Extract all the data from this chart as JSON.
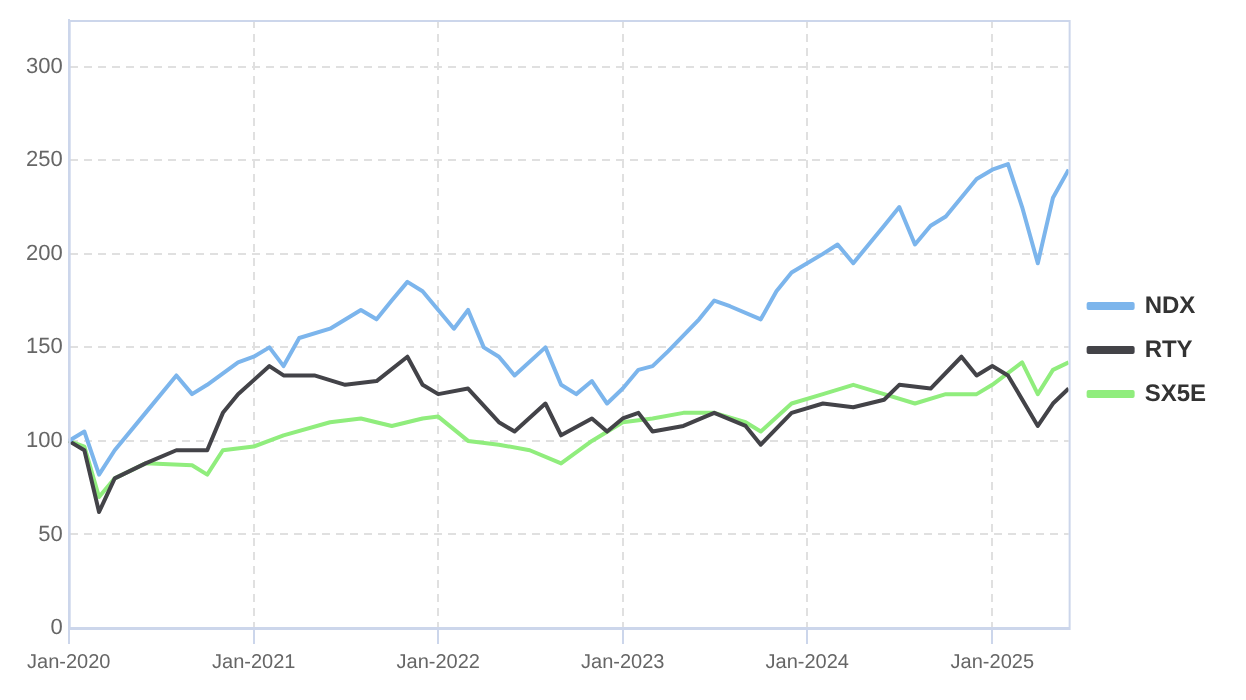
{
  "chart_data": {
    "type": "line",
    "legend": "right",
    "grid": true,
    "line_style": "solid",
    "marker": "none",
    "xlim": [
      "2020-01",
      "2025-06"
    ],
    "xticks": [
      {
        "value": "2020-01",
        "label": "Jan-2020"
      },
      {
        "value": "2021-01",
        "label": "Jan-2021"
      },
      {
        "value": "2022-01",
        "label": "Jan-2022"
      },
      {
        "value": "2023-01",
        "label": "Jan-2023"
      },
      {
        "value": "2024-01",
        "label": "Jan-2024"
      },
      {
        "value": "2025-01",
        "label": "Jan-2025"
      }
    ],
    "ylim": [
      0,
      325
    ],
    "yticks": [
      0,
      50,
      100,
      150,
      200,
      250,
      300
    ],
    "series": [
      {
        "name": "NDX",
        "color": "#7cb5ec",
        "x": [
          "2020-01",
          "2020-02",
          "2020-03",
          "2020-04",
          "2020-06",
          "2020-08",
          "2020-09",
          "2020-10",
          "2020-12",
          "2021-01",
          "2021-02",
          "2021-03",
          "2021-04",
          "2021-06",
          "2021-08",
          "2021-09",
          "2021-10",
          "2021-11",
          "2021-12",
          "2022-01",
          "2022-02",
          "2022-03",
          "2022-04",
          "2022-05",
          "2022-06",
          "2022-08",
          "2022-09",
          "2022-10",
          "2022-11",
          "2022-12",
          "2023-01",
          "2023-02",
          "2023-03",
          "2023-04",
          "2023-06",
          "2023-07",
          "2023-08",
          "2023-10",
          "2023-11",
          "2023-12",
          "2024-02",
          "2024-03",
          "2024-04",
          "2024-06",
          "2024-07",
          "2024-08",
          "2024-09",
          "2024-10",
          "2024-12",
          "2025-01",
          "2025-02",
          "2025-03",
          "2025-04",
          "2025-05",
          "2025-06"
        ],
        "values": [
          100,
          105,
          82,
          95,
          115,
          135,
          125,
          130,
          142,
          145,
          150,
          140,
          155,
          160,
          170,
          165,
          175,
          185,
          180,
          170,
          160,
          170,
          150,
          145,
          135,
          150,
          130,
          125,
          132,
          120,
          128,
          138,
          140,
          148,
          165,
          175,
          172,
          165,
          180,
          190,
          200,
          205,
          195,
          215,
          225,
          205,
          215,
          220,
          240,
          245,
          248,
          225,
          195,
          230,
          245
        ]
      },
      {
        "name": "RTY",
        "color": "#434348",
        "x": [
          "2020-01",
          "2020-02",
          "2020-03",
          "2020-04",
          "2020-06",
          "2020-08",
          "2020-10",
          "2020-11",
          "2020-12",
          "2021-02",
          "2021-03",
          "2021-05",
          "2021-07",
          "2021-09",
          "2021-11",
          "2021-12",
          "2022-01",
          "2022-03",
          "2022-05",
          "2022-06",
          "2022-08",
          "2022-09",
          "2022-11",
          "2022-12",
          "2023-01",
          "2023-02",
          "2023-03",
          "2023-05",
          "2023-07",
          "2023-09",
          "2023-10",
          "2023-12",
          "2024-02",
          "2024-04",
          "2024-06",
          "2024-07",
          "2024-09",
          "2024-11",
          "2024-12",
          "2025-01",
          "2025-02",
          "2025-04",
          "2025-05",
          "2025-06"
        ],
        "values": [
          100,
          95,
          62,
          80,
          88,
          95,
          95,
          115,
          125,
          140,
          135,
          135,
          130,
          132,
          145,
          130,
          125,
          128,
          110,
          105,
          120,
          103,
          112,
          105,
          112,
          115,
          105,
          108,
          115,
          108,
          98,
          115,
          120,
          118,
          122,
          130,
          128,
          145,
          135,
          140,
          135,
          108,
          120,
          128
        ]
      },
      {
        "name": "SX5E",
        "color": "#90ed7d",
        "x": [
          "2020-01",
          "2020-02",
          "2020-03",
          "2020-04",
          "2020-06",
          "2020-09",
          "2020-10",
          "2020-11",
          "2021-01",
          "2021-03",
          "2021-06",
          "2021-08",
          "2021-10",
          "2021-12",
          "2022-01",
          "2022-03",
          "2022-05",
          "2022-07",
          "2022-09",
          "2022-11",
          "2023-01",
          "2023-03",
          "2023-05",
          "2023-07",
          "2023-09",
          "2023-10",
          "2023-12",
          "2024-02",
          "2024-04",
          "2024-06",
          "2024-08",
          "2024-10",
          "2024-12",
          "2025-01",
          "2025-03",
          "2025-04",
          "2025-05",
          "2025-06"
        ],
        "values": [
          100,
          97,
          70,
          80,
          88,
          87,
          82,
          95,
          97,
          103,
          110,
          112,
          108,
          112,
          113,
          100,
          98,
          95,
          88,
          100,
          110,
          112,
          115,
          115,
          110,
          105,
          120,
          125,
          130,
          125,
          120,
          125,
          125,
          130,
          142,
          125,
          138,
          142
        ]
      }
    ]
  }
}
